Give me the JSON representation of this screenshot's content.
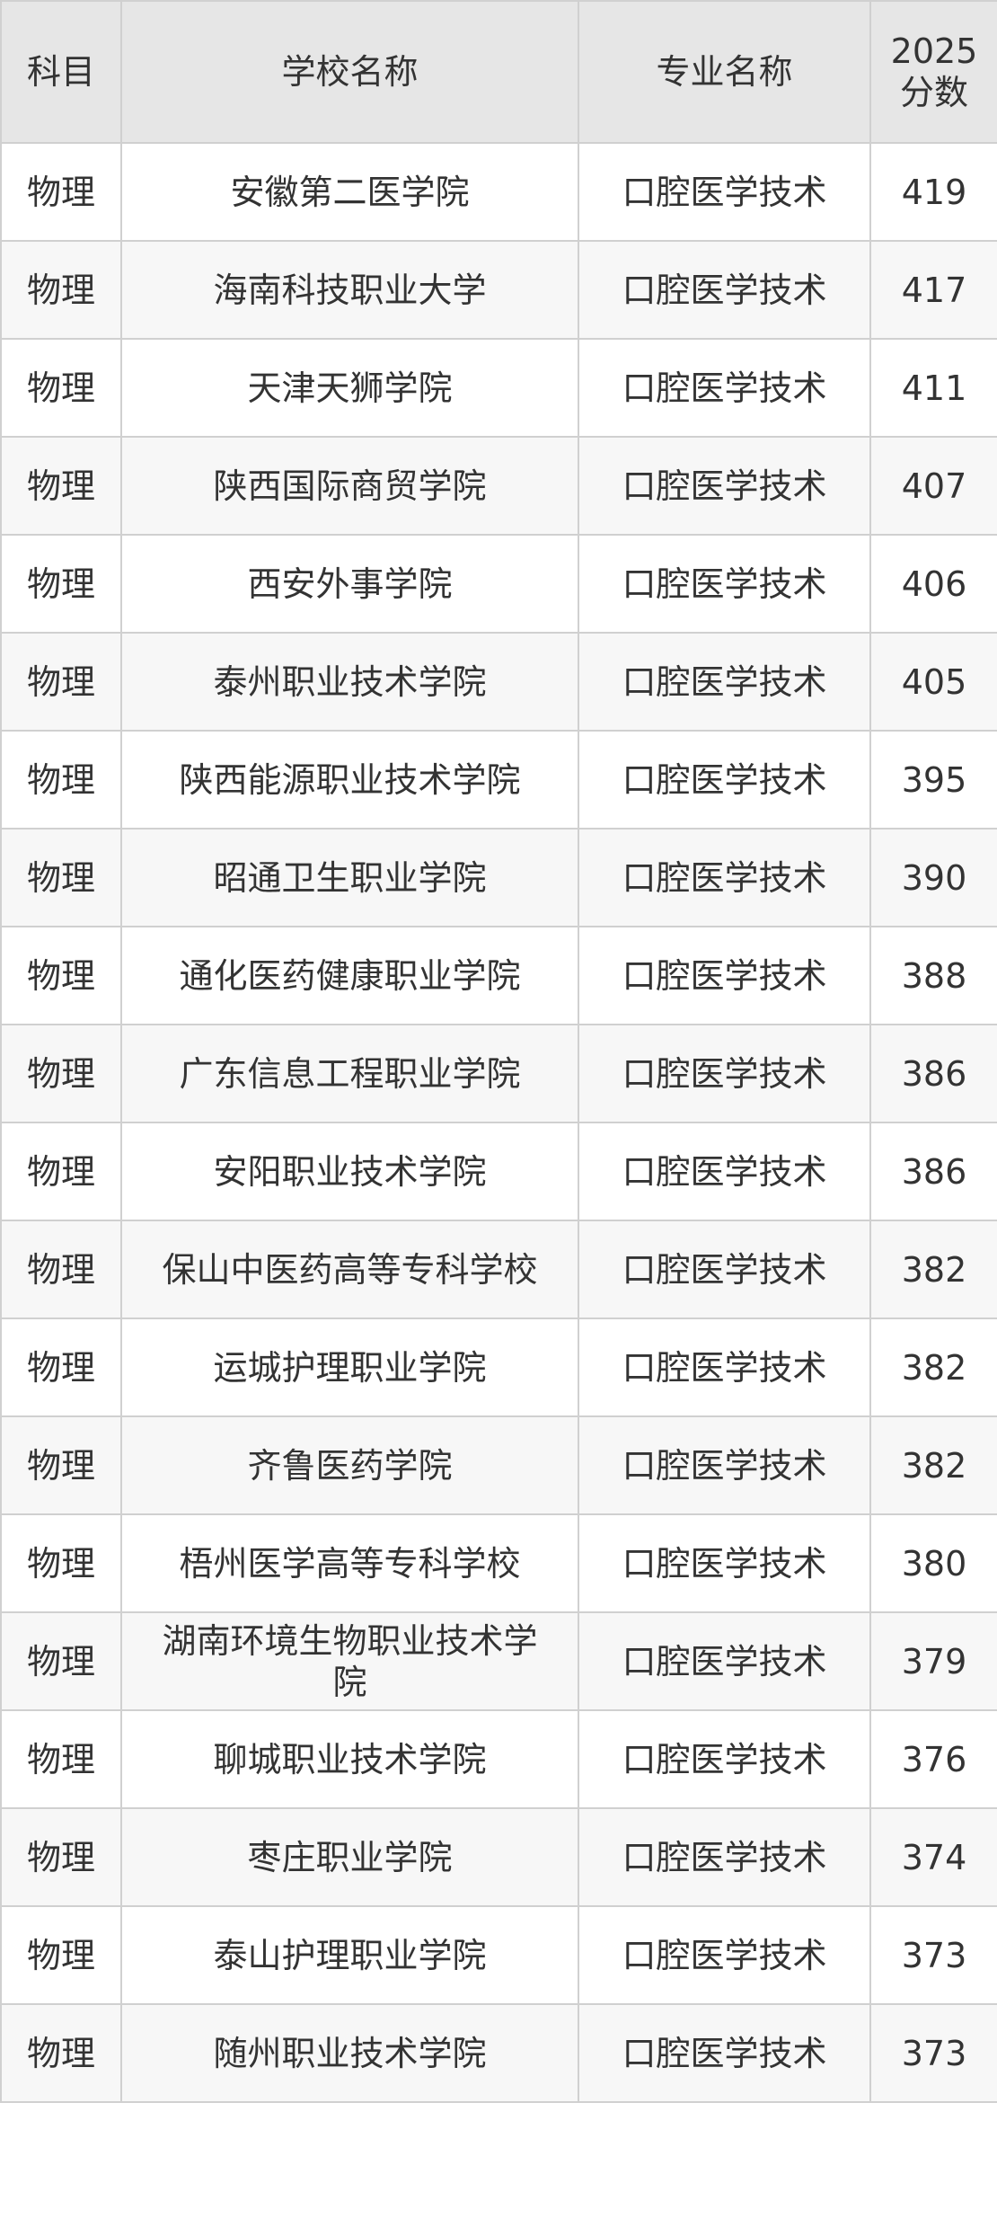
{
  "table": {
    "header": [
      "科目",
      "学校名称",
      "专业名称",
      "2025分数"
    ],
    "rows": [
      [
        "物理",
        "安徽第二医学院",
        "口腔医学技术",
        419
      ],
      [
        "物理",
        "海南科技职业大学",
        "口腔医学技术",
        417
      ],
      [
        "物理",
        "天津天狮学院",
        "口腔医学技术",
        411
      ],
      [
        "物理",
        "陕西国际商贸学院",
        "口腔医学技术",
        407
      ],
      [
        "物理",
        "西安外事学院",
        "口腔医学技术",
        406
      ],
      [
        "物理",
        "泰州职业技术学院",
        "口腔医学技术",
        405
      ],
      [
        "物理",
        "陕西能源职业技术学院",
        "口腔医学技术",
        395
      ],
      [
        "物理",
        "昭通卫生职业学院",
        "口腔医学技术",
        390
      ],
      [
        "物理",
        "通化医药健康职业学院",
        "口腔医学技术",
        388
      ],
      [
        "物理",
        "广东信息工程职业学院",
        "口腔医学技术",
        386
      ],
      [
        "物理",
        "安阳职业技术学院",
        "口腔医学技术",
        386
      ],
      [
        "物理",
        "保山中医药高等专科学校",
        "口腔医学技术",
        382
      ],
      [
        "物理",
        "运城护理职业学院",
        "口腔医学技术",
        382
      ],
      [
        "物理",
        "齐鲁医药学院",
        "口腔医学技术",
        382
      ],
      [
        "物理",
        "梧州医学高等专科学校",
        "口腔医学技术",
        380
      ],
      [
        "物理",
        "湖南环境生物职业技术学院",
        "口腔医学技术",
        379
      ],
      [
        "物理",
        "聊城职业技术学院",
        "口腔医学技术",
        376
      ],
      [
        "物理",
        "枣庄职业学院",
        "口腔医学技术",
        374
      ],
      [
        "物理",
        "泰山护理职业学院",
        "口腔医学技术",
        373
      ],
      [
        "物理",
        "随州职业技术学院",
        "口腔医学技术",
        373
      ]
    ]
  }
}
